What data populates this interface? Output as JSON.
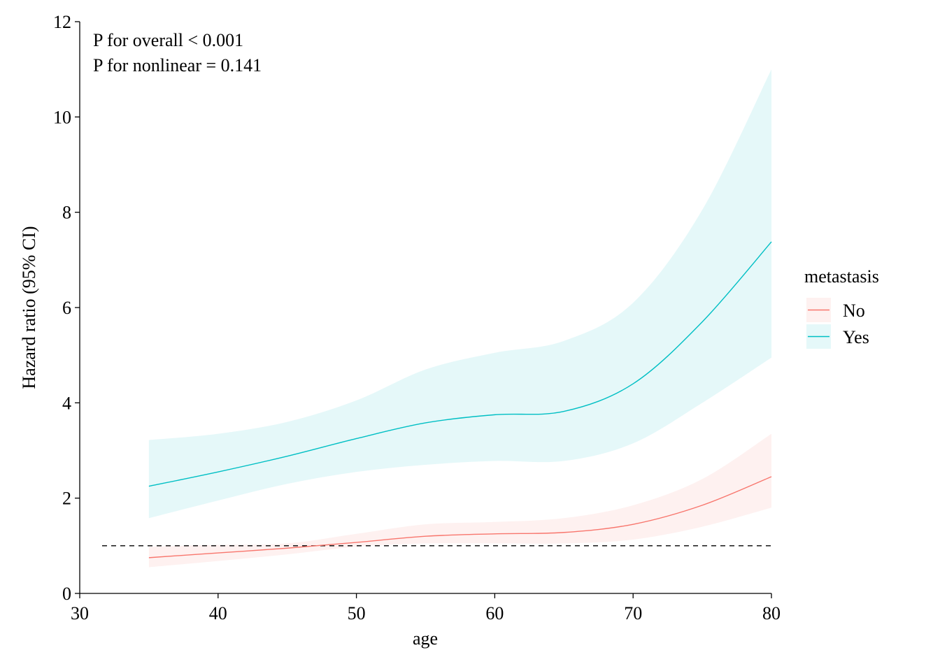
{
  "chart_data": {
    "type": "line",
    "title": "",
    "xlabel": "age",
    "ylabel": "Hazard ratio (95% CI)",
    "xlim": [
      30,
      80
    ],
    "ylim": [
      0,
      12
    ],
    "x_ticks": [
      30,
      40,
      50,
      60,
      70,
      80
    ],
    "y_ticks": [
      0,
      2,
      4,
      6,
      8,
      10,
      12
    ],
    "grid": false,
    "reference_line": {
      "y": 1,
      "style": "dashed"
    },
    "annotations": [
      "P for overall < 0.001",
      "P for nonlinear = 0.141"
    ],
    "legend": {
      "title": "metastasis",
      "placement": "right"
    },
    "series": [
      {
        "name": "No",
        "color": "#F8766D",
        "x": [
          35,
          40,
          45,
          50,
          55,
          60,
          65,
          70,
          75,
          80
        ],
        "y": [
          0.75,
          0.85,
          0.95,
          1.07,
          1.2,
          1.25,
          1.28,
          1.45,
          1.85,
          2.45
        ],
        "lower": [
          0.55,
          0.68,
          0.82,
          0.98,
          1.05,
          1.05,
          1.05,
          1.13,
          1.4,
          1.8
        ],
        "upper": [
          0.98,
          1.02,
          1.05,
          1.25,
          1.45,
          1.5,
          1.58,
          1.85,
          2.4,
          3.35
        ]
      },
      {
        "name": "Yes",
        "color": "#00BFC4",
        "x": [
          35,
          40,
          45,
          50,
          55,
          60,
          65,
          70,
          75,
          80
        ],
        "y": [
          2.25,
          2.55,
          2.88,
          3.25,
          3.58,
          3.75,
          3.82,
          4.4,
          5.7,
          7.38
        ],
        "lower": [
          1.58,
          1.95,
          2.3,
          2.55,
          2.7,
          2.78,
          2.78,
          3.15,
          4.0,
          4.95
        ],
        "upper": [
          3.22,
          3.35,
          3.6,
          4.05,
          4.7,
          5.05,
          5.3,
          6.1,
          8.05,
          11.0
        ]
      }
    ]
  }
}
